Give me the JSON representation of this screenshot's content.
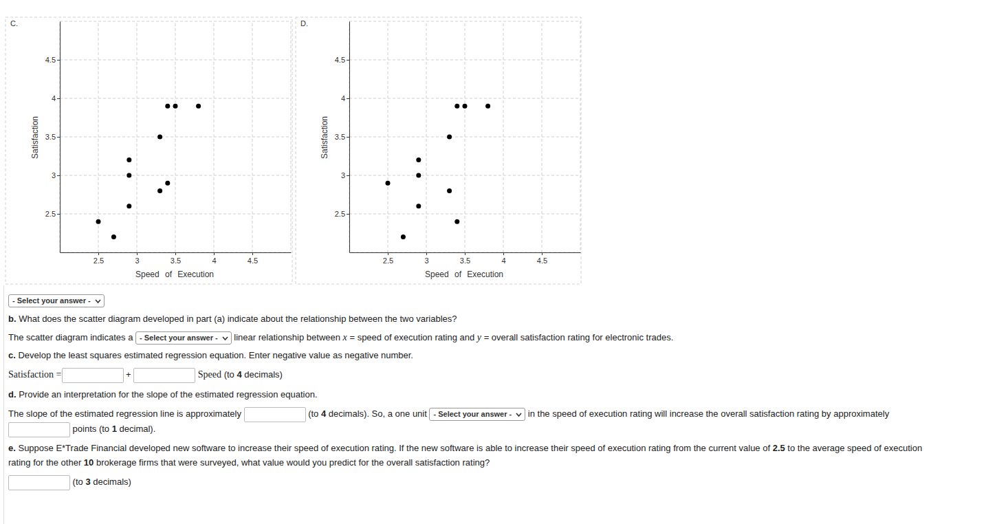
{
  "chart_data": [
    {
      "type": "scatter",
      "title": "C.",
      "x_label": "Speed of Execution",
      "y_label": "Satisfaction",
      "x": [
        2.5,
        2.7,
        2.9,
        2.9,
        2.9,
        3.3,
        3.3,
        3.4,
        3.4,
        3.5,
        3.8
      ],
      "values": [
        2.4,
        2.2,
        3.2,
        3.0,
        2.6,
        3.5,
        2.8,
        3.9,
        2.9,
        3.9,
        3.9
      ],
      "xlim": [
        2,
        5
      ],
      "ylim": [
        2,
        5
      ],
      "xticks": [
        2.5,
        3,
        3.5,
        4,
        4.5
      ],
      "yticks": [
        2.5,
        3,
        3.5,
        4,
        4.5
      ],
      "grid": true,
      "marker": "circle",
      "color": "#000000"
    },
    {
      "type": "scatter",
      "title": "D.",
      "x_label": "Speed of Execution",
      "y_label": "Satisfaction",
      "x": [
        2.5,
        2.7,
        2.9,
        2.9,
        2.9,
        3.3,
        3.3,
        3.4,
        3.4,
        3.5,
        3.8
      ],
      "values": [
        2.9,
        2.2,
        3.2,
        3.0,
        2.6,
        3.5,
        2.8,
        3.9,
        2.4,
        3.9,
        3.9
      ],
      "xlim": [
        2,
        5
      ],
      "ylim": [
        2,
        5
      ],
      "xticks": [
        2.5,
        3,
        3.5,
        4,
        4.5
      ],
      "yticks": [
        2.5,
        3,
        3.5,
        4,
        4.5
      ],
      "grid": true,
      "marker": "circle",
      "color": "#000000"
    }
  ],
  "page": {
    "lines": [
      [
        {
          "select": "- Select your answer -"
        }
      ],
      [
        {
          "bold": "b."
        },
        {
          "text": " What does the scatter diagram developed in part (a) indicate about the relationship between the two variables?"
        }
      ],
      [
        {
          "text": "The scatter diagram indicates a "
        },
        {
          "select": "- Select your answer -"
        },
        {
          "text": " linear relationship between "
        },
        {
          "math": "x"
        },
        {
          "text": " = speed of execution rating and "
        },
        {
          "math": "y"
        },
        {
          "text": " = overall satisfaction rating for electronic trades."
        }
      ],
      [
        {
          "bold": "c."
        },
        {
          "text": " Develop the least squares estimated regression equation. Enter negative value as negative number."
        }
      ],
      [
        {
          "serif": "Satisfaction ="
        },
        {
          "field": "input"
        },
        {
          "text": " + "
        },
        {
          "field": "input"
        },
        {
          "serif": " Speed"
        },
        {
          "text": " (to "
        },
        {
          "bold": "4"
        },
        {
          "text": " decimals)"
        }
      ],
      [
        {
          "bold": "d."
        },
        {
          "text": " Provide an interpretation for the slope of the estimated regression equation."
        }
      ],
      [
        {
          "text": "The slope of the estimated regression line is approximately "
        },
        {
          "field": "input"
        },
        {
          "text": " (to "
        },
        {
          "bold": "4"
        },
        {
          "text": " decimals). So, a one unit "
        },
        {
          "select": "- Select your answer -"
        },
        {
          "text": " in the speed of execution rating will increase the overall satisfaction rating by approximately"
        }
      ],
      [
        {
          "field": "input"
        },
        {
          "text": " points (to "
        },
        {
          "bold": "1"
        },
        {
          "text": " decimal)."
        }
      ],
      [
        {
          "bold": "e."
        },
        {
          "text": " Suppose E*Trade Financial developed new software to increase their speed of execution rating. If the new software is able to increase their speed of execution rating from the current value of "
        },
        {
          "bold": "2.5"
        },
        {
          "text": " to the average speed of execution"
        }
      ],
      [
        {
          "text": "rating for the other "
        },
        {
          "bold": "10"
        },
        {
          "text": " brokerage firms that were surveyed, what value would you predict for the overall satisfaction rating?"
        }
      ],
      [
        {
          "field": "input"
        },
        {
          "text": " (to "
        },
        {
          "bold": "3"
        },
        {
          "text": " decimals)"
        }
      ]
    ]
  }
}
